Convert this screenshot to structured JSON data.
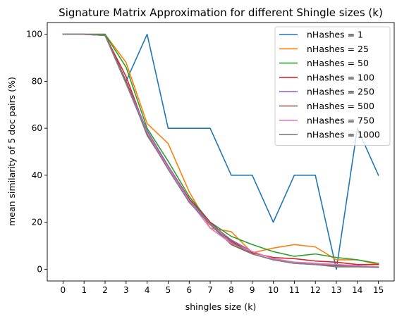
{
  "chart_data": {
    "type": "line",
    "title": "Signature Matrix Approximation for different Shingle sizes (k)",
    "xlabel": "shingles size (k)",
    "ylabel": "mean similarity of 5 doc pairs (%)",
    "x": [
      0,
      1,
      2,
      3,
      4,
      5,
      6,
      7,
      8,
      9,
      10,
      11,
      12,
      13,
      14,
      15
    ],
    "xlim": [
      -0.75,
      15.75
    ],
    "ylim": [
      -5,
      105
    ],
    "yticks": [
      0,
      20,
      40,
      60,
      80,
      100
    ],
    "grid": false,
    "legend_position": "top-right",
    "series": [
      {
        "name": "nHashes = 1",
        "color": "#1f77b4",
        "values": [
          100,
          100,
          100,
          80,
          100,
          60,
          60,
          60,
          40,
          40,
          20,
          40,
          40,
          0,
          60,
          40
        ]
      },
      {
        "name": "nHashes = 25",
        "color": "#ff7f0e",
        "values": [
          100,
          100,
          100,
          88,
          62,
          53.5,
          33,
          17.5,
          16,
          7,
          9,
          10.5,
          9.5,
          4,
          4,
          2
        ]
      },
      {
        "name": "nHashes = 50",
        "color": "#2ca02c",
        "values": [
          100,
          100,
          100,
          86,
          60,
          46,
          31,
          20,
          14,
          10.5,
          7.5,
          5.5,
          6.5,
          5,
          4,
          2.5
        ]
      },
      {
        "name": "nHashes = 100",
        "color": "#d62728",
        "values": [
          100,
          100,
          99.5,
          82,
          58,
          44,
          30,
          20,
          12,
          7,
          5,
          4.5,
          3.5,
          3,
          2,
          2
        ]
      },
      {
        "name": "nHashes = 250",
        "color": "#9467bd",
        "values": [
          100,
          100,
          99.5,
          80,
          59,
          44,
          29.5,
          19.5,
          12.5,
          7.5,
          4.5,
          3,
          2.5,
          2,
          1.5,
          1
        ]
      },
      {
        "name": "nHashes = 500",
        "color": "#8c564b",
        "values": [
          100,
          100,
          99.5,
          80,
          57,
          43,
          28.5,
          19,
          10.5,
          6.5,
          4,
          2.5,
          2,
          1.5,
          1.2,
          1
        ]
      },
      {
        "name": "nHashes = 750",
        "color": "#e377c2",
        "values": [
          100,
          100,
          99.5,
          79,
          58,
          43,
          29,
          17.5,
          11,
          7.5,
          4.5,
          3,
          2.5,
          2,
          1.5,
          1
        ]
      },
      {
        "name": "nHashes = 1000",
        "color": "#7f7f7f",
        "values": [
          100,
          100,
          99.5,
          79,
          57.5,
          42.5,
          28.5,
          19,
          11.5,
          6.5,
          4,
          2.5,
          2,
          1,
          1,
          0.8
        ]
      }
    ]
  }
}
